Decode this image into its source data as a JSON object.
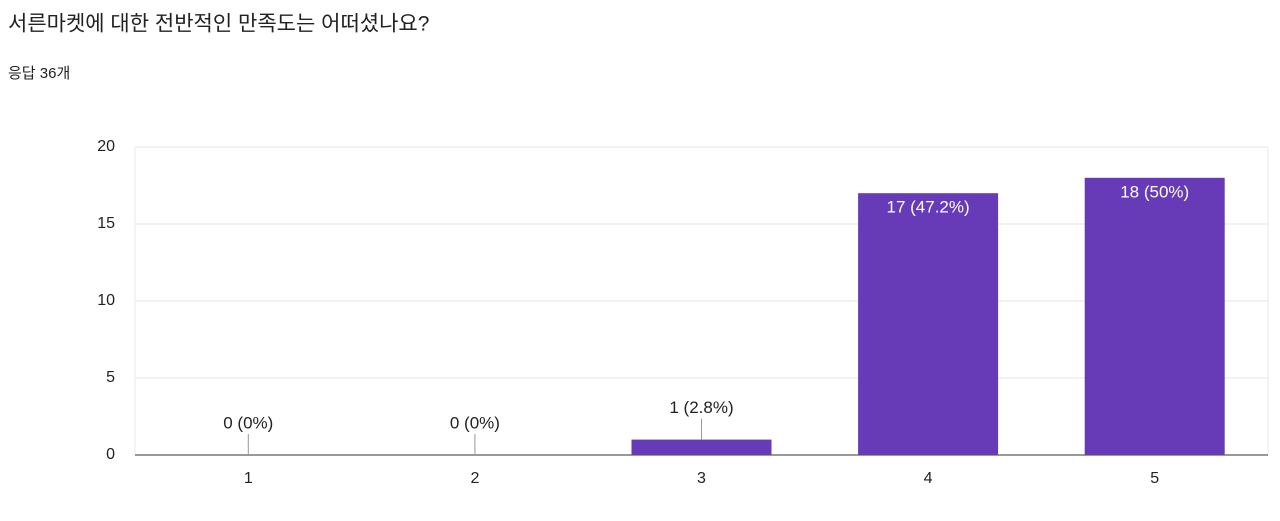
{
  "chart_data": {
    "type": "bar",
    "title": "서른마켓에 대한 전반적인 만족도는 어떠셨나요?",
    "subtitle": "응답 36개",
    "categories": [
      "1",
      "2",
      "3",
      "4",
      "5"
    ],
    "values": [
      0,
      0,
      1,
      17,
      18
    ],
    "value_labels": [
      "0 (0%)",
      "0 (0%)",
      "1 (2.8%)",
      "17 (47.2%)",
      "18 (50%)"
    ],
    "color": "#673ab7",
    "ylim": [
      0,
      20
    ],
    "yticks": [
      0,
      5,
      10,
      15,
      20
    ],
    "grid": true
  }
}
